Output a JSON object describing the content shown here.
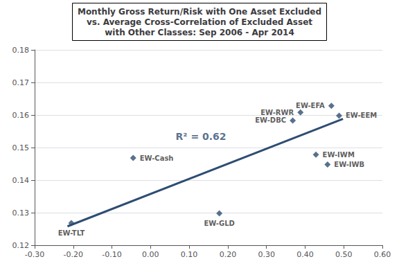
{
  "chart_data": {
    "type": "scatter",
    "title": "Monthly Gross Return/Risk with One Asset Excluded\nvs. Average Cross-Correlation of Excluded Asset\nwith Other Classes: Sep 2006 - Apr 2014",
    "xlim": [
      -0.3,
      0.6
    ],
    "ylim": [
      0.12,
      0.18
    ],
    "xticks": [
      {
        "value": -0.3,
        "label": "-0.30"
      },
      {
        "value": -0.2,
        "label": "-0.20"
      },
      {
        "value": -0.1,
        "label": "-0.10"
      },
      {
        "value": 0.0,
        "label": "0.00"
      },
      {
        "value": 0.1,
        "label": "0.10"
      },
      {
        "value": 0.2,
        "label": "0.20"
      },
      {
        "value": 0.3,
        "label": "0.30"
      },
      {
        "value": 0.4,
        "label": "0.40"
      },
      {
        "value": 0.5,
        "label": "0.50"
      },
      {
        "value": 0.6,
        "label": "0.60"
      }
    ],
    "yticks": [
      0.12,
      0.13,
      0.14,
      0.15,
      0.16,
      0.17,
      0.18
    ],
    "grid": true,
    "series": [
      {
        "type": "scatter",
        "marker": "diamond",
        "color": "#2e4d72",
        "x": [
          -0.205,
          -0.045,
          0.178,
          0.368,
          0.388,
          0.468,
          0.428,
          0.458,
          0.488
        ],
        "values": [
          0.1268,
          0.1468,
          0.1298,
          0.1583,
          0.1608,
          0.1628,
          0.1478,
          0.1448,
          0.1598
        ],
        "labels": [
          "EW-TLT",
          "EW-Cash",
          "EW-GLD",
          "EW-DBC",
          "EW-RWR",
          "EW-EFA",
          "EW-IWM",
          "EW-IWB",
          "EW-EEM"
        ]
      },
      {
        "type": "line",
        "color": "#2e4d72",
        "x": [
          -0.215,
          0.498
        ],
        "values": [
          0.1258,
          0.1588
        ]
      }
    ],
    "annotations": [
      {
        "text": "R² = 0.62",
        "x": 0.065,
        "y": 0.1535,
        "color": "#2e4d72"
      }
    ]
  }
}
